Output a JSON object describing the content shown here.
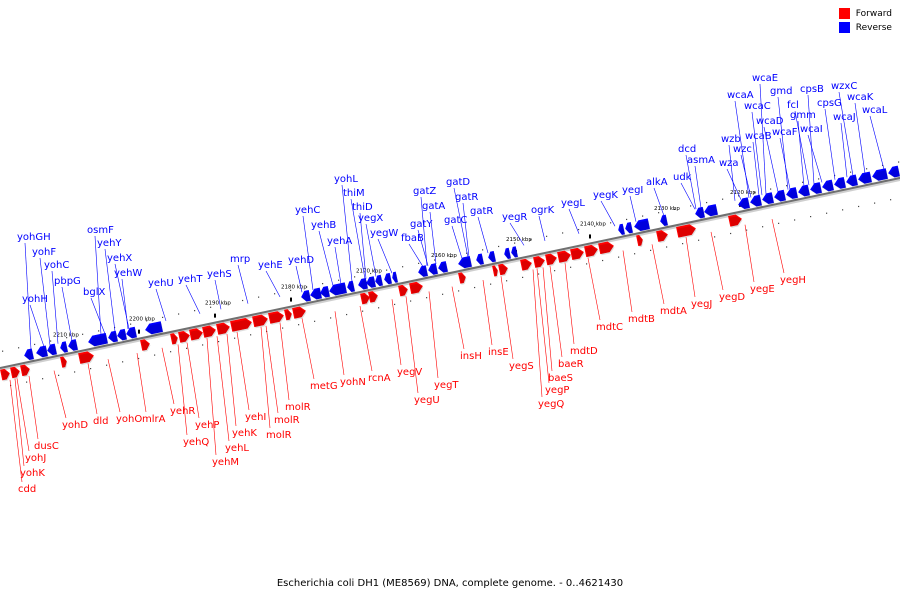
{
  "legend": {
    "forward": "Forward",
    "reverse": "Reverse",
    "forward_color": "#ff0000",
    "reverse_color": "#0000ff"
  },
  "caption": "Escherichia coli DH1 (ME8569) DNA, complete genome. - 0..4621430",
  "ticks": [
    "2120 kbp",
    "2130 kbp",
    "2140 kbp",
    "2150 kbp",
    "2160 kbp",
    "2170 kbp",
    "2180 kbp",
    "2190 kbp",
    "2200 kbp",
    "2210 kbp"
  ],
  "reverse_genes": [
    "yohGH",
    "yohF",
    "yohH",
    "yohC",
    "pbpG",
    "bglX",
    "osmF",
    "yehY",
    "yehX",
    "yehW",
    "yehU",
    "yehT",
    "yehS",
    "mrp",
    "yehE",
    "yehD",
    "yehC",
    "yehB",
    "yehA",
    "yohL",
    "thiM",
    "thiD",
    "yegX",
    "yegW",
    "gatZ",
    "gatY",
    "fbaB",
    "gatA",
    "gatC",
    "gatD",
    "gatR",
    "gatR",
    "yegR",
    "ogrK",
    "yegL",
    "yegK",
    "yegI",
    "alkA",
    "udk",
    "asmA",
    "dcd",
    "wza",
    "wzb",
    "wzc",
    "wcaA",
    "wcaB",
    "wcaC",
    "wcaD",
    "wcaE",
    "gmd",
    "fcl",
    "gmm",
    "wcaF",
    "wcaI",
    "cpsB",
    "cpsG",
    "wzxC",
    "wcaJ",
    "wcaK",
    "wcaL"
  ],
  "forward_genes": [
    "cdd",
    "yohK",
    "yohJ",
    "dusC",
    "yohD",
    "dld",
    "yohO",
    "mlrA",
    "yehR",
    "yehQ",
    "yehP",
    "yehM",
    "yehL",
    "yehK",
    "yehI",
    "molR",
    "molR",
    "molR",
    "metG",
    "yohN",
    "rcnA",
    "yegV",
    "yegU",
    "yegT",
    "insH",
    "insE",
    "yegS",
    "yegQ",
    "yegP",
    "baeS",
    "baeR",
    "mdtD",
    "mdtC",
    "mdtB",
    "mdtA",
    "yegJ",
    "yegD",
    "yegE",
    "yegH"
  ]
}
